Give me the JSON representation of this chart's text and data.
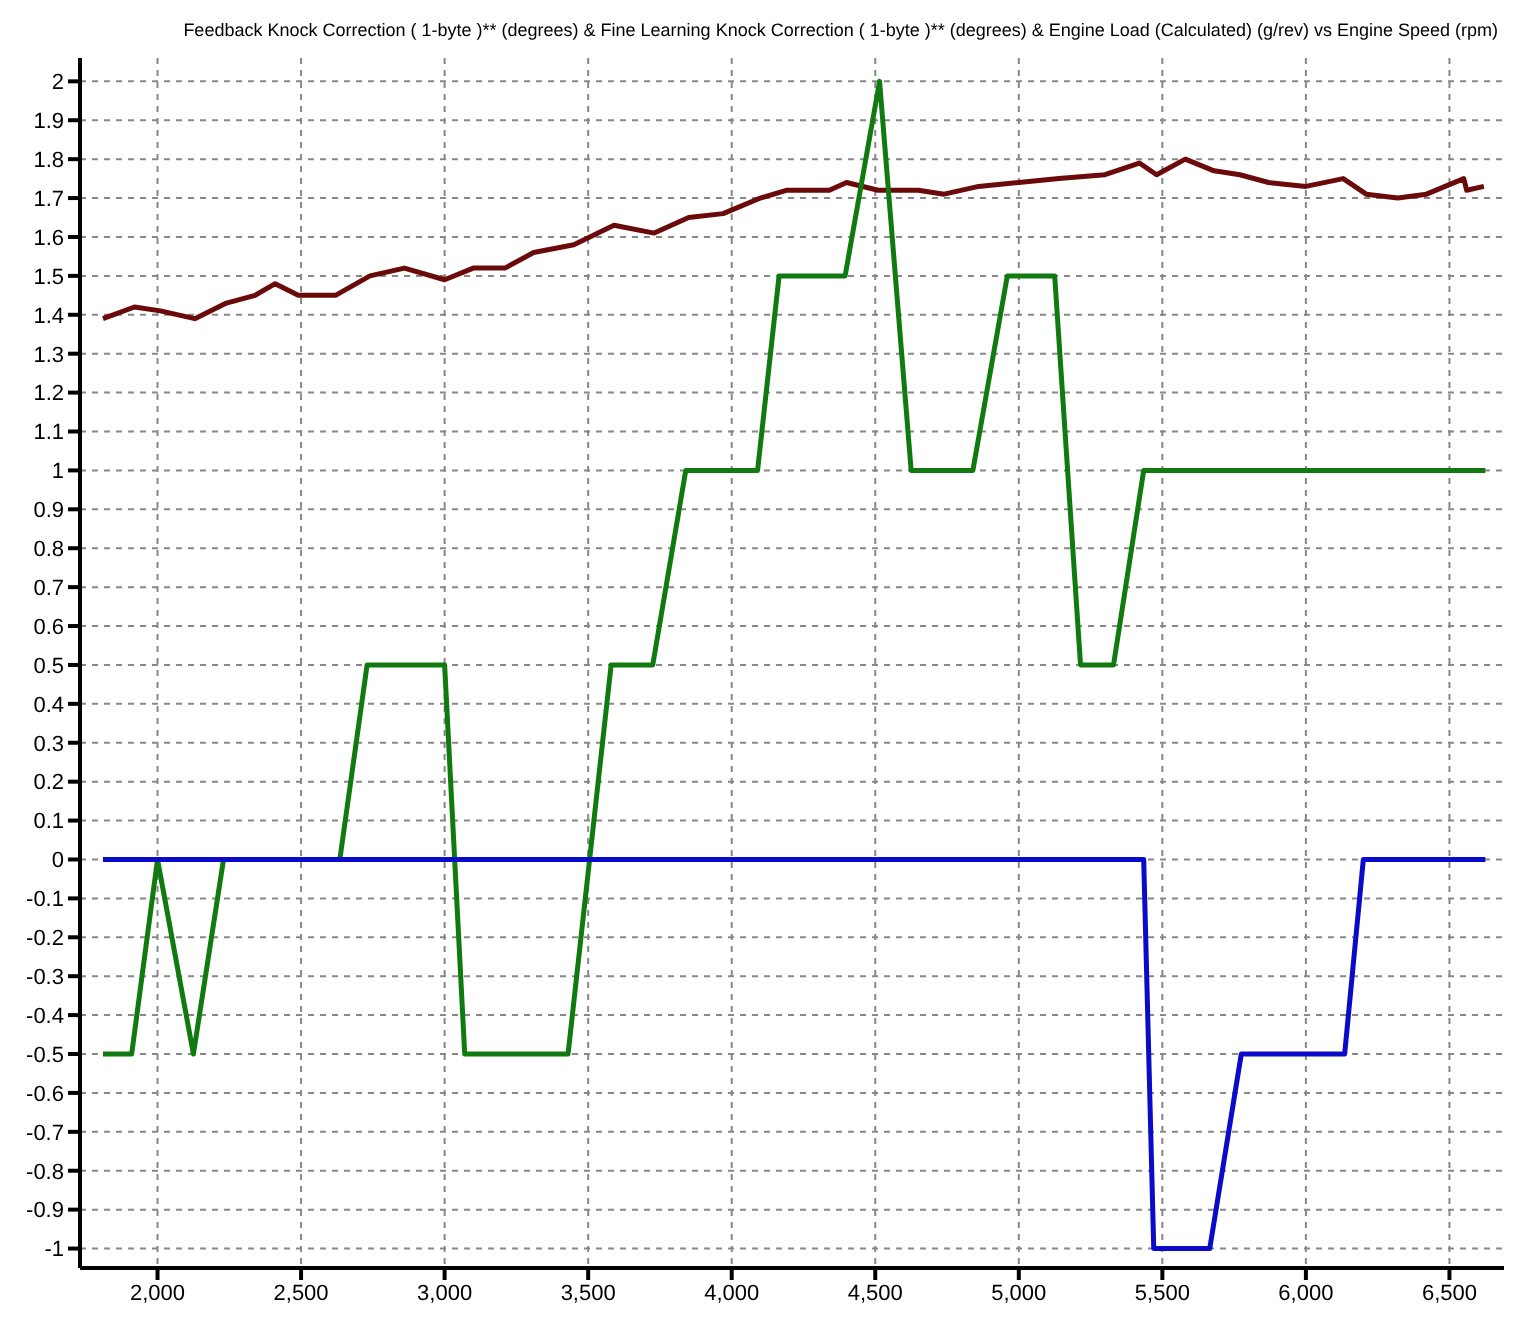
{
  "chart_data": {
    "type": "line",
    "title": "Feedback Knock Correction ( 1-byte )** (degrees) & Fine Learning Knock Correction ( 1-byte )** (degrees) & Engine Load (Calculated) (g/rev) vs Engine Speed (rpm)",
    "xlim": [
      1730,
      6690
    ],
    "ylim": [
      -1.05,
      2.06
    ],
    "xticks": [
      {
        "value": 2000,
        "label": "2,000"
      },
      {
        "value": 2500,
        "label": "2,500"
      },
      {
        "value": 3000,
        "label": "3,000"
      },
      {
        "value": 3500,
        "label": "3,500"
      },
      {
        "value": 4000,
        "label": "4,000"
      },
      {
        "value": 4500,
        "label": "4,500"
      },
      {
        "value": 5000,
        "label": "5,000"
      },
      {
        "value": 5500,
        "label": "5,500"
      },
      {
        "value": 6000,
        "label": "6,000"
      },
      {
        "value": 6500,
        "label": "6,500"
      }
    ],
    "yticks": [
      -1,
      -0.9,
      -0.8,
      -0.7,
      -0.6,
      -0.5,
      -0.4,
      -0.3,
      -0.2,
      -0.1,
      0,
      0.1,
      0.2,
      0.3,
      0.4,
      0.5,
      0.6,
      0.7,
      0.8,
      0.9,
      1,
      1.1,
      1.2,
      1.3,
      1.4,
      1.5,
      1.6,
      1.7,
      1.8,
      1.9,
      2
    ],
    "grid": true,
    "marker": "none",
    "line_style": "solid",
    "series": [
      {
        "color": "#6b0a0a",
        "x": [
          1810,
          1920,
          2010,
          2130,
          2240,
          2340,
          2410,
          2490,
          2620,
          2740,
          2860,
          3000,
          3100,
          3210,
          3310,
          3450,
          3590,
          3730,
          3850,
          3970,
          4100,
          4190,
          4340,
          4400,
          4510,
          4650,
          4740,
          4860,
          5000,
          5140,
          5300,
          5420,
          5480,
          5580,
          5680,
          5770,
          5870,
          6000,
          6130,
          6210,
          6320,
          6420,
          6550,
          6560,
          6620
        ],
        "values": [
          1.39,
          1.42,
          1.41,
          1.39,
          1.43,
          1.45,
          1.48,
          1.45,
          1.45,
          1.5,
          1.52,
          1.49,
          1.52,
          1.52,
          1.56,
          1.58,
          1.63,
          1.61,
          1.65,
          1.66,
          1.7,
          1.72,
          1.72,
          1.74,
          1.72,
          1.72,
          1.71,
          1.73,
          1.74,
          1.75,
          1.76,
          1.79,
          1.76,
          1.8,
          1.77,
          1.76,
          1.74,
          1.73,
          1.75,
          1.71,
          1.7,
          1.71,
          1.75,
          1.72,
          1.73
        ]
      },
      {
        "color": "#107a10",
        "x": [
          1810,
          1910,
          2000,
          2125,
          2230,
          2635,
          2730,
          3000,
          3070,
          3430,
          3580,
          3725,
          3840,
          4090,
          4165,
          4395,
          4515,
          4625,
          4840,
          4960,
          5125,
          5215,
          5330,
          5435,
          6625
        ],
        "values": [
          -0.5,
          -0.5,
          0,
          -0.5,
          0,
          0,
          0.5,
          0.5,
          -0.5,
          -0.5,
          0.5,
          0.5,
          1,
          1,
          1.5,
          1.5,
          2,
          1,
          1,
          1.5,
          1.5,
          0.5,
          0.5,
          1,
          1
        ]
      },
      {
        "color": "#0a0ac8",
        "x": [
          1810,
          5435,
          5470,
          5665,
          5775,
          6135,
          6200,
          6625
        ],
        "values": [
          0,
          0,
          -1,
          -1,
          -0.5,
          -0.5,
          0,
          0
        ]
      }
    ]
  }
}
